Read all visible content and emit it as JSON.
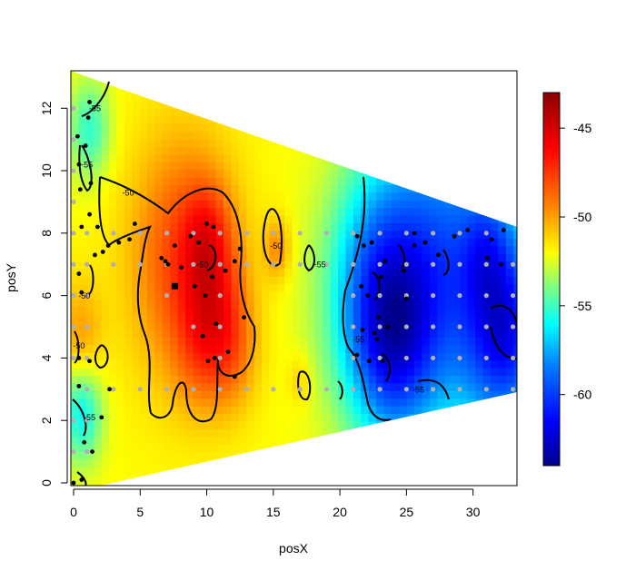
{
  "chart_data": {
    "type": "heatmap",
    "title": "",
    "xlabel": "posX",
    "ylabel": "posY",
    "xlim": [
      0,
      33.3
    ],
    "ylim": [
      0,
      13.2
    ],
    "x_ticks": [
      0,
      5,
      10,
      15,
      20,
      25,
      30
    ],
    "y_ticks": [
      0,
      2,
      4,
      6,
      8,
      10,
      12
    ],
    "color_scale": {
      "min": -64,
      "max": -43,
      "ticks": [
        -45,
        -50,
        -55,
        -60
      ],
      "colors": [
        "#00008b",
        "#0000ff",
        "#0080ff",
        "#00ffff",
        "#80ff80",
        "#ffff00",
        "#ff8000",
        "#ff0000",
        "#8b0000"
      ]
    },
    "contour_labels": [
      {
        "text": "-55",
        "x": 1.6,
        "y": 11.9
      },
      {
        "text": "-55",
        "x": 1.0,
        "y": 10.1
      },
      {
        "text": "-50",
        "x": 4.1,
        "y": 9.2
      },
      {
        "text": "-50",
        "x": 15.2,
        "y": 7.5
      },
      {
        "text": "-55",
        "x": 18.5,
        "y": 6.9
      },
      {
        "text": "-50",
        "x": 0.8,
        "y": 5.9
      },
      {
        "text": "-50",
        "x": 9.7,
        "y": 6.9
      },
      {
        "text": "-50",
        "x": 0.4,
        "y": 4.3
      },
      {
        "text": "-55",
        "x": 21.4,
        "y": 4.5
      },
      {
        "text": "-55",
        "x": 25.9,
        "y": 2.9
      },
      {
        "text": "-55",
        "x": 1.2,
        "y": 2.0
      }
    ],
    "measurement_points": [
      [
        0,
        0
      ],
      [
        1.2,
        12.2
      ],
      [
        1.1,
        11.7
      ],
      [
        0.3,
        11.1
      ],
      [
        0.9,
        10.8
      ],
      [
        0.4,
        10.2
      ],
      [
        1.3,
        9.6
      ],
      [
        0.5,
        9.4
      ],
      [
        1.2,
        8.6
      ],
      [
        1.8,
        8.2
      ],
      [
        0.6,
        8.2
      ],
      [
        1.6,
        7.3
      ],
      [
        2.6,
        7.6
      ],
      [
        3.4,
        7.7
      ],
      [
        2.2,
        7.4
      ],
      [
        4.2,
        7.8
      ],
      [
        4.6,
        8.3
      ],
      [
        7.6,
        7.6
      ],
      [
        6.6,
        7.2
      ],
      [
        6.9,
        7.1
      ],
      [
        7.1,
        7.0
      ],
      [
        8.1,
        6.9
      ],
      [
        8.8,
        7.9
      ],
      [
        9.4,
        7.7
      ],
      [
        10.0,
        8.3
      ],
      [
        10.5,
        8.2
      ],
      [
        9.1,
        6.3
      ],
      [
        9.9,
        6.0
      ],
      [
        10.4,
        6.6
      ],
      [
        11.4,
        6.8
      ],
      [
        12.1,
        7.1
      ],
      [
        12.5,
        7.5
      ],
      [
        12.8,
        5.3
      ],
      [
        10.7,
        5.1
      ],
      [
        9.7,
        4.7
      ],
      [
        10.1,
        3.9
      ],
      [
        10.6,
        4.0
      ],
      [
        11.6,
        4.2
      ],
      [
        12.1,
        3.4
      ],
      [
        0.4,
        6.7
      ],
      [
        0.6,
        6.1
      ],
      [
        1.2,
        3.9
      ],
      [
        0.4,
        3.1
      ],
      [
        0.8,
        1.3
      ],
      [
        1.4,
        1.0
      ],
      [
        2.1,
        2.1
      ],
      [
        21.3,
        7.9
      ],
      [
        21.8,
        7.6
      ],
      [
        21.6,
        6.3
      ],
      [
        22.1,
        6.0
      ],
      [
        22.4,
        7.7
      ],
      [
        23.4,
        7.1
      ],
      [
        23.1,
        6.6
      ],
      [
        21.7,
        4.9
      ],
      [
        22.6,
        4.8
      ],
      [
        22.9,
        5.3
      ],
      [
        23.6,
        5.0
      ],
      [
        24.8,
        6.8
      ],
      [
        25.0,
        5.9
      ],
      [
        25.6,
        7.6
      ],
      [
        25.6,
        8.0
      ],
      [
        26.4,
        7.7
      ],
      [
        27.4,
        7.3
      ],
      [
        28.6,
        7.9
      ],
      [
        29.6,
        8.1
      ],
      [
        31.4,
        7.8
      ],
      [
        32.3,
        8.1
      ],
      [
        31.1,
        7.2
      ],
      [
        32.1,
        7.0
      ],
      [
        22.8,
        4.6
      ],
      [
        21.3,
        4.1
      ],
      [
        22.2,
        3.9
      ],
      [
        23.2,
        3.9
      ],
      [
        2.7,
        3.0
      ],
      [
        0.6,
        0.1
      ],
      [
        0.4,
        4.0
      ]
    ],
    "reference_points": [
      [
        1,
        7
      ],
      [
        3,
        7
      ],
      [
        5,
        7
      ],
      [
        7,
        7
      ],
      [
        9,
        7
      ],
      [
        11,
        7
      ],
      [
        13,
        7
      ],
      [
        15,
        7
      ],
      [
        17,
        7
      ],
      [
        19,
        7
      ],
      [
        21,
        7
      ],
      [
        23,
        7
      ],
      [
        25,
        7
      ],
      [
        27,
        7
      ],
      [
        29,
        7
      ],
      [
        31,
        7
      ],
      [
        33,
        7
      ],
      [
        1,
        8
      ],
      [
        3,
        8
      ],
      [
        5,
        8
      ],
      [
        7,
        8
      ],
      [
        9,
        8
      ],
      [
        11,
        8
      ],
      [
        13,
        8
      ],
      [
        15,
        8
      ],
      [
        17,
        8
      ],
      [
        19,
        8
      ],
      [
        21,
        8
      ],
      [
        23,
        8
      ],
      [
        25,
        8
      ],
      [
        27,
        8
      ],
      [
        29,
        8
      ],
      [
        31,
        8
      ],
      [
        1,
        3
      ],
      [
        3,
        3
      ],
      [
        5,
        3
      ],
      [
        7,
        3
      ],
      [
        9,
        3
      ],
      [
        11,
        3
      ],
      [
        13,
        3
      ],
      [
        15,
        3
      ],
      [
        17,
        3
      ],
      [
        19,
        3
      ],
      [
        21,
        3
      ],
      [
        23,
        3
      ],
      [
        25,
        3
      ],
      [
        27,
        3
      ],
      [
        29,
        3
      ],
      [
        31,
        3
      ],
      [
        33,
        3
      ],
      [
        0,
        9
      ],
      [
        0,
        10
      ],
      [
        0,
        11
      ],
      [
        0,
        12
      ],
      [
        0,
        8
      ],
      [
        0,
        7
      ],
      [
        0,
        6
      ],
      [
        0,
        5
      ],
      [
        0,
        4
      ],
      [
        0,
        2
      ],
      [
        0,
        1
      ],
      [
        1,
        5
      ],
      [
        1,
        6
      ],
      [
        1,
        4
      ],
      [
        1,
        2
      ],
      [
        1,
        1
      ],
      [
        11,
        4
      ],
      [
        11,
        5
      ],
      [
        11,
        6
      ],
      [
        7,
        6
      ],
      [
        9,
        5
      ],
      [
        21,
        4
      ],
      [
        21,
        5
      ],
      [
        21,
        6
      ],
      [
        23,
        4
      ],
      [
        23,
        5
      ],
      [
        23,
        6
      ],
      [
        25,
        4
      ],
      [
        25,
        5
      ],
      [
        25,
        6
      ],
      [
        27,
        4
      ],
      [
        27,
        5
      ],
      [
        27,
        6
      ],
      [
        29,
        4
      ],
      [
        29,
        5
      ],
      [
        29,
        6
      ],
      [
        31,
        4
      ],
      [
        31,
        5
      ],
      [
        31,
        6
      ],
      [
        33,
        4
      ],
      [
        33,
        5
      ],
      [
        33,
        6
      ]
    ],
    "marker": {
      "shape": "square",
      "x": 7.6,
      "y": 6.3
    },
    "grid": false,
    "legend": "colorbar-right"
  }
}
